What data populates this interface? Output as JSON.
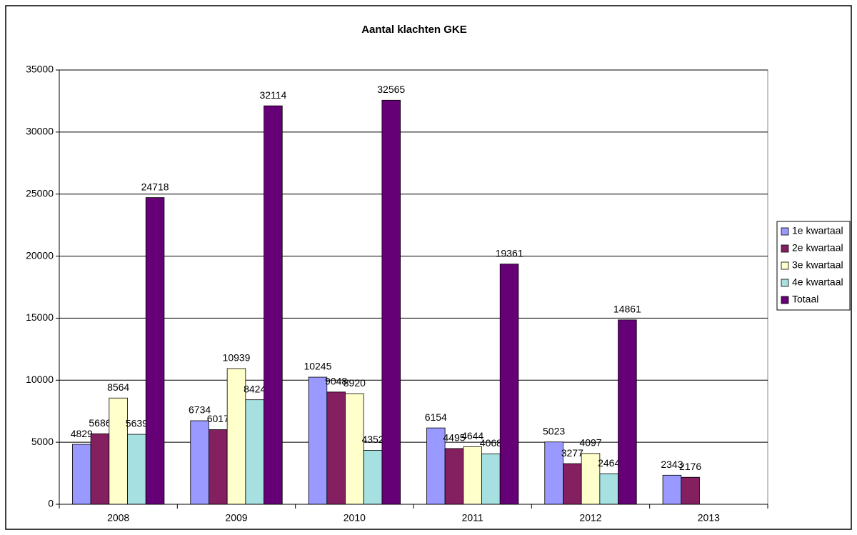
{
  "chart_data": {
    "type": "bar",
    "title": "Aantal klachten GKE",
    "categories": [
      "2008",
      "2009",
      "2010",
      "2011",
      "2012",
      "2013"
    ],
    "series": [
      {
        "name": "1e kwartaal",
        "color": "#9999ff",
        "values": [
          4829,
          6734,
          10245,
          6154,
          5023,
          2343
        ]
      },
      {
        "name": "2e kwartaal",
        "color": "#852060",
        "values": [
          5686,
          6017,
          9048,
          4495,
          3277,
          2176
        ]
      },
      {
        "name": "3e kwartaal",
        "color": "#ffffcc",
        "values": [
          8564,
          10939,
          8920,
          4644,
          4097,
          null
        ]
      },
      {
        "name": "4e kwartaal",
        "color": "#a6e0e0",
        "values": [
          5639,
          8424,
          4352,
          4068,
          2464,
          null
        ]
      },
      {
        "name": "Totaal",
        "color": "#660077",
        "values": [
          24718,
          32114,
          32565,
          19361,
          14861,
          null
        ]
      }
    ],
    "ylim": [
      0,
      35000
    ],
    "yticks": [
      0,
      5000,
      10000,
      15000,
      20000,
      25000,
      30000,
      35000
    ],
    "grid": true,
    "legend": "right"
  }
}
